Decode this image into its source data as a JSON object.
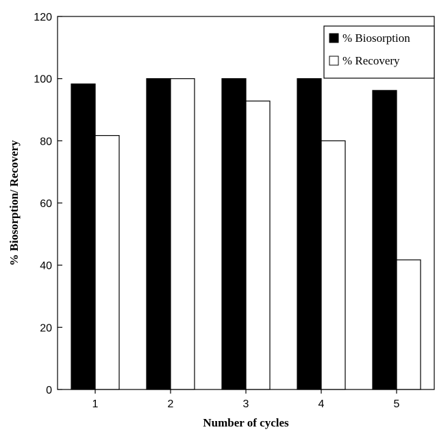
{
  "chart_data": {
    "type": "bar",
    "categories": [
      "1",
      "2",
      "3",
      "4",
      "5"
    ],
    "series": [
      {
        "name": "% Biosorption",
        "values": [
          98.3,
          100,
          100,
          100,
          96.2
        ],
        "color": "#000000"
      },
      {
        "name": "% Recovery",
        "values": [
          81.7,
          100,
          92.8,
          80.0,
          41.7
        ],
        "color": "#ffffff"
      }
    ],
    "xlabel": "Number of cycles",
    "ylabel": "% Biosorption/ Recovery",
    "ylim": [
      0,
      120
    ],
    "yticks": [
      0,
      20,
      40,
      60,
      80,
      100,
      120
    ],
    "grid": false,
    "legend_position": "top-right"
  }
}
